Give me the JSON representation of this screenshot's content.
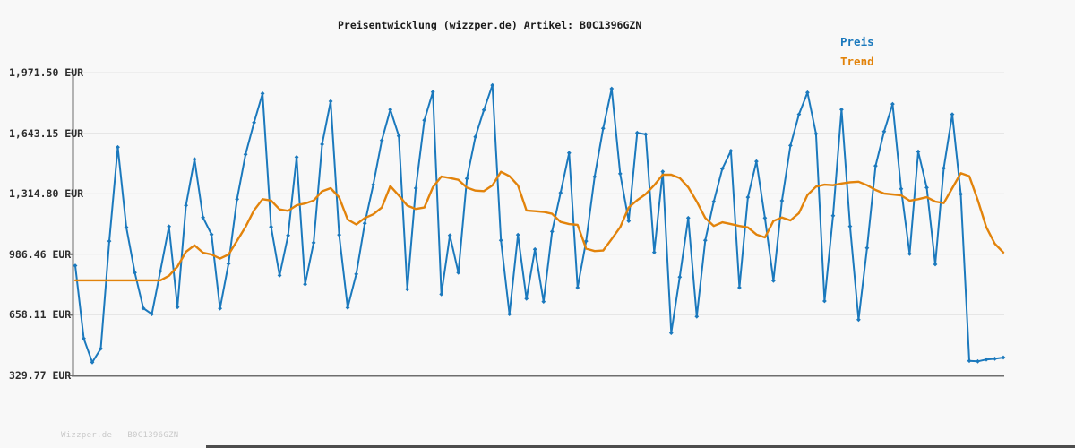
{
  "title": "Preisentwicklung (wizzper.de) Artikel: B0C1396GZN",
  "legend": {
    "preis": "Preis",
    "trend": "Trend"
  },
  "watermark": "Wizzper.de – B0C1396GZN",
  "colors": {
    "preis": "#1b79bd",
    "trend": "#e2830b",
    "axis": "#6e6e6e",
    "grid": "#e4e4e4",
    "background": "#f8f8f8",
    "label": "#2e2e2e",
    "title": "#1c1c1c",
    "watermark": "#c9c9c9",
    "bottom_bar": "#4d4d4d"
  },
  "y_axis": {
    "unit": "EUR",
    "min": 329.77,
    "max": 1971.5,
    "ticks": [
      {
        "label": "1,971.50 EUR",
        "value": 1971.5
      },
      {
        "label": "1,643.15 EUR",
        "value": 1643.15
      },
      {
        "label": "1,314.80 EUR",
        "value": 1314.8
      },
      {
        "label": "986.46 EUR",
        "value": 986.46
      },
      {
        "label": "658.11 EUR",
        "value": 658.11
      },
      {
        "label": "329.77 EUR",
        "value": 329.77
      }
    ]
  },
  "chart_data": {
    "type": "line",
    "title": "Preisentwicklung (wizzper.de) Artikel: B0C1396GZN",
    "xlabel": "",
    "ylabel": "EUR",
    "x_note": "unlabeled time axis, ~110 evenly spaced price samples",
    "ylim": [
      329.77,
      1971.5
    ],
    "grid": "horizontal",
    "legend_position": "top-right",
    "series": [
      {
        "name": "Preis",
        "color": "#1b79bd",
        "marker": "diamond",
        "width": 2,
        "values": [
          925,
          530,
          401,
          475,
          1058,
          1567,
          1133,
          887,
          694,
          662,
          895,
          1137,
          700,
          1251,
          1502,
          1186,
          1094,
          693,
          936,
          1285,
          1528,
          1701,
          1858,
          1135,
          872,
          1089,
          1513,
          824,
          1049,
          1583,
          1816,
          1092,
          697,
          879,
          1154,
          1364,
          1604,
          1771,
          1628,
          797,
          1345,
          1713,
          1866,
          770,
          1089,
          887,
          1397,
          1623,
          1769,
          1903,
          1062,
          662,
          1092,
          746,
          1013,
          730,
          1110,
          1320,
          1536,
          806,
          1058,
          1407,
          1669,
          1884,
          1423,
          1167,
          1645,
          1637,
          997,
          1435,
          560,
          863,
          1183,
          649,
          1062,
          1272,
          1450,
          1547,
          806,
          1296,
          1490,
          1183,
          843,
          1277,
          1576,
          1745,
          1863,
          1640,
          733,
          1196,
          1771,
          1138,
          632,
          1021,
          1466,
          1652,
          1801,
          1341,
          989,
          1543,
          1348,
          932,
          1453,
          1745,
          1313,
          409,
          406,
          416,
          420,
          427
        ]
      },
      {
        "name": "Trend",
        "color": "#e2830b",
        "marker": "none",
        "width": 2.4,
        "values": [
          845,
          845,
          845,
          845,
          845,
          845,
          845,
          845,
          845,
          845,
          845,
          870,
          920,
          1000,
          1035,
          995,
          985,
          963,
          985,
          1060,
          1135,
          1225,
          1285,
          1278,
          1230,
          1222,
          1252,
          1262,
          1278,
          1328,
          1345,
          1295,
          1175,
          1148,
          1183,
          1203,
          1240,
          1356,
          1305,
          1250,
          1232,
          1240,
          1350,
          1408,
          1400,
          1390,
          1348,
          1332,
          1329,
          1360,
          1434,
          1410,
          1360,
          1224,
          1220,
          1216,
          1206,
          1162,
          1150,
          1146,
          1017,
          1004,
          1007,
          1069,
          1133,
          1240,
          1280,
          1313,
          1361,
          1418,
          1418,
          1400,
          1350,
          1272,
          1183,
          1140,
          1160,
          1150,
          1140,
          1132,
          1094,
          1078,
          1167,
          1186,
          1170,
          1210,
          1308,
          1353,
          1364,
          1361,
          1370,
          1377,
          1380,
          1361,
          1335,
          1316,
          1311,
          1306,
          1277,
          1285,
          1296,
          1272,
          1264,
          1345,
          1426,
          1410,
          1280,
          1133,
          1044,
          996
        ]
      }
    ]
  }
}
